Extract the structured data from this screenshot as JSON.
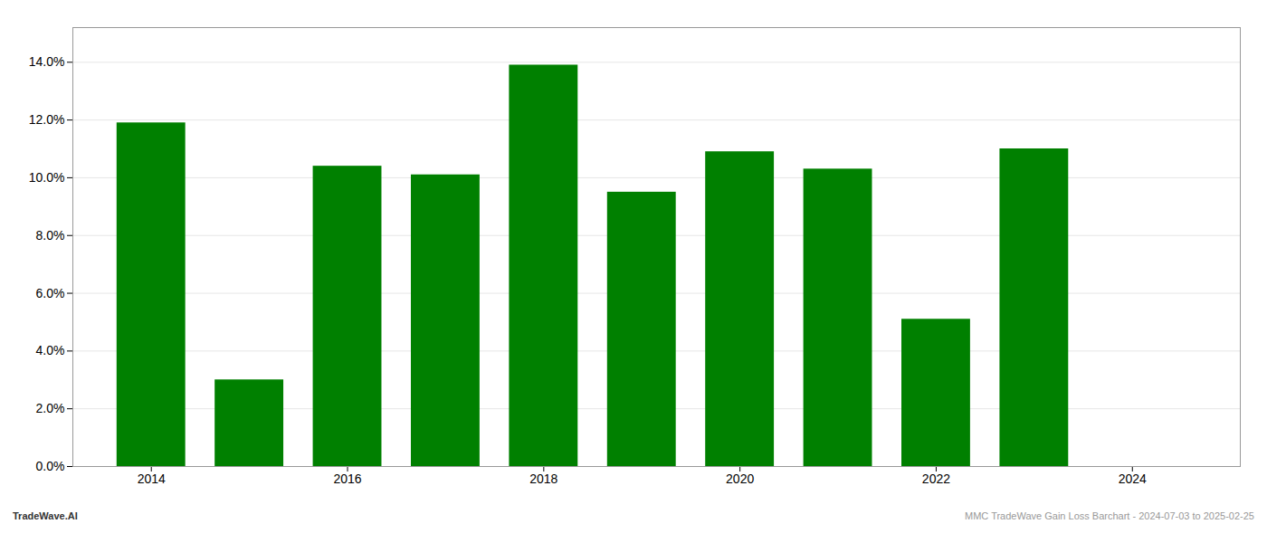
{
  "chart_data": {
    "type": "bar",
    "x": [
      2014,
      2015,
      2016,
      2017,
      2018,
      2019,
      2020,
      2021,
      2022,
      2023
    ],
    "values": [
      0.119,
      0.03,
      0.104,
      0.101,
      0.139,
      0.095,
      0.109,
      0.103,
      0.051,
      0.11
    ],
    "color": "#008000",
    "xlim": [
      2013.2,
      2025.1
    ],
    "xticks": [
      2014,
      2016,
      2018,
      2020,
      2022,
      2024
    ],
    "ylim": [
      0.0,
      0.152
    ],
    "yticks": [
      {
        "value": 0.0,
        "label": "0.0%"
      },
      {
        "value": 0.02,
        "label": "2.0%"
      },
      {
        "value": 0.04,
        "label": "4.0%"
      },
      {
        "value": 0.06,
        "label": "6.0%"
      },
      {
        "value": 0.08,
        "label": "8.0%"
      },
      {
        "value": 0.1,
        "label": "10.0%"
      },
      {
        "value": 0.12,
        "label": "12.0%"
      },
      {
        "value": 0.14,
        "label": "14.0%"
      }
    ],
    "grid": true,
    "annotations": [
      "TradeWave.AI",
      "MMC TradeWave Gain Loss Barchart - 2024-07-03 to 2025-02-25"
    ]
  }
}
